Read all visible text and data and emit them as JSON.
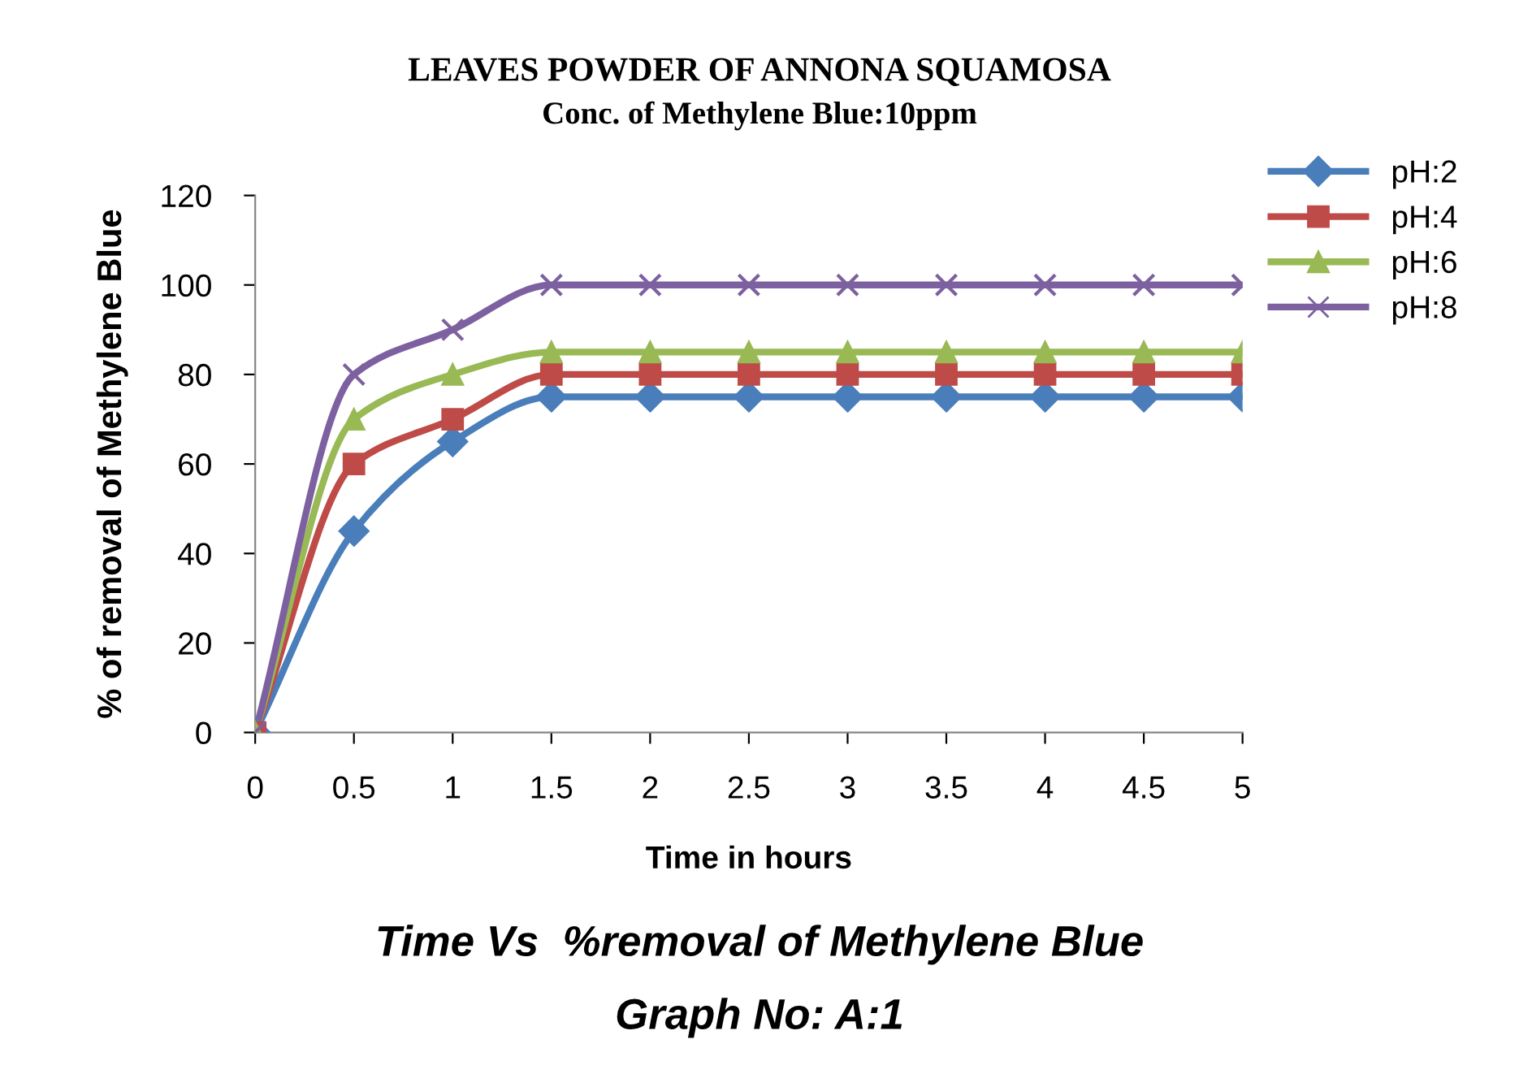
{
  "chart_data": {
    "type": "line",
    "title": "LEAVES POWDER OF ANNONA SQUAMOSA",
    "subtitle": "Conc. of Methylene Blue:10ppm",
    "xlabel": "Time in hours",
    "ylabel": "% of removal of Methylene Blue",
    "annotations": [
      "Time Vs  %removal of Methylene Blue",
      "Graph No: A:1"
    ],
    "x": [
      0,
      0.5,
      1,
      1.5,
      2,
      2.5,
      3,
      3.5,
      4,
      4.5,
      5
    ],
    "series": [
      {
        "name": "pH:2",
        "color": "#4a7ebb",
        "marker": "diamond",
        "values": [
          0,
          45,
          65,
          75,
          75,
          75,
          75,
          75,
          75,
          75,
          75
        ]
      },
      {
        "name": "pH:4",
        "color": "#be4b48",
        "marker": "square",
        "values": [
          0,
          60,
          70,
          80,
          80,
          80,
          80,
          80,
          80,
          80,
          80
        ]
      },
      {
        "name": "pH:6",
        "color": "#98b954",
        "marker": "triangle",
        "values": [
          0,
          70,
          80,
          85,
          85,
          85,
          85,
          85,
          85,
          85,
          85
        ]
      },
      {
        "name": "pH:8",
        "color": "#7d60a0",
        "marker": "cross",
        "values": [
          0,
          80,
          90,
          100,
          100,
          100,
          100,
          100,
          100,
          100,
          100
        ]
      }
    ],
    "xlim": [
      0,
      5
    ],
    "xticks": [
      0,
      0.5,
      1,
      1.5,
      2,
      2.5,
      3,
      3.5,
      4,
      4.5,
      5
    ],
    "ylim": [
      0,
      120
    ],
    "yticks": [
      0,
      20,
      40,
      60,
      80,
      100,
      120
    ],
    "grid": false,
    "legend": "right",
    "line_style": "solid"
  }
}
